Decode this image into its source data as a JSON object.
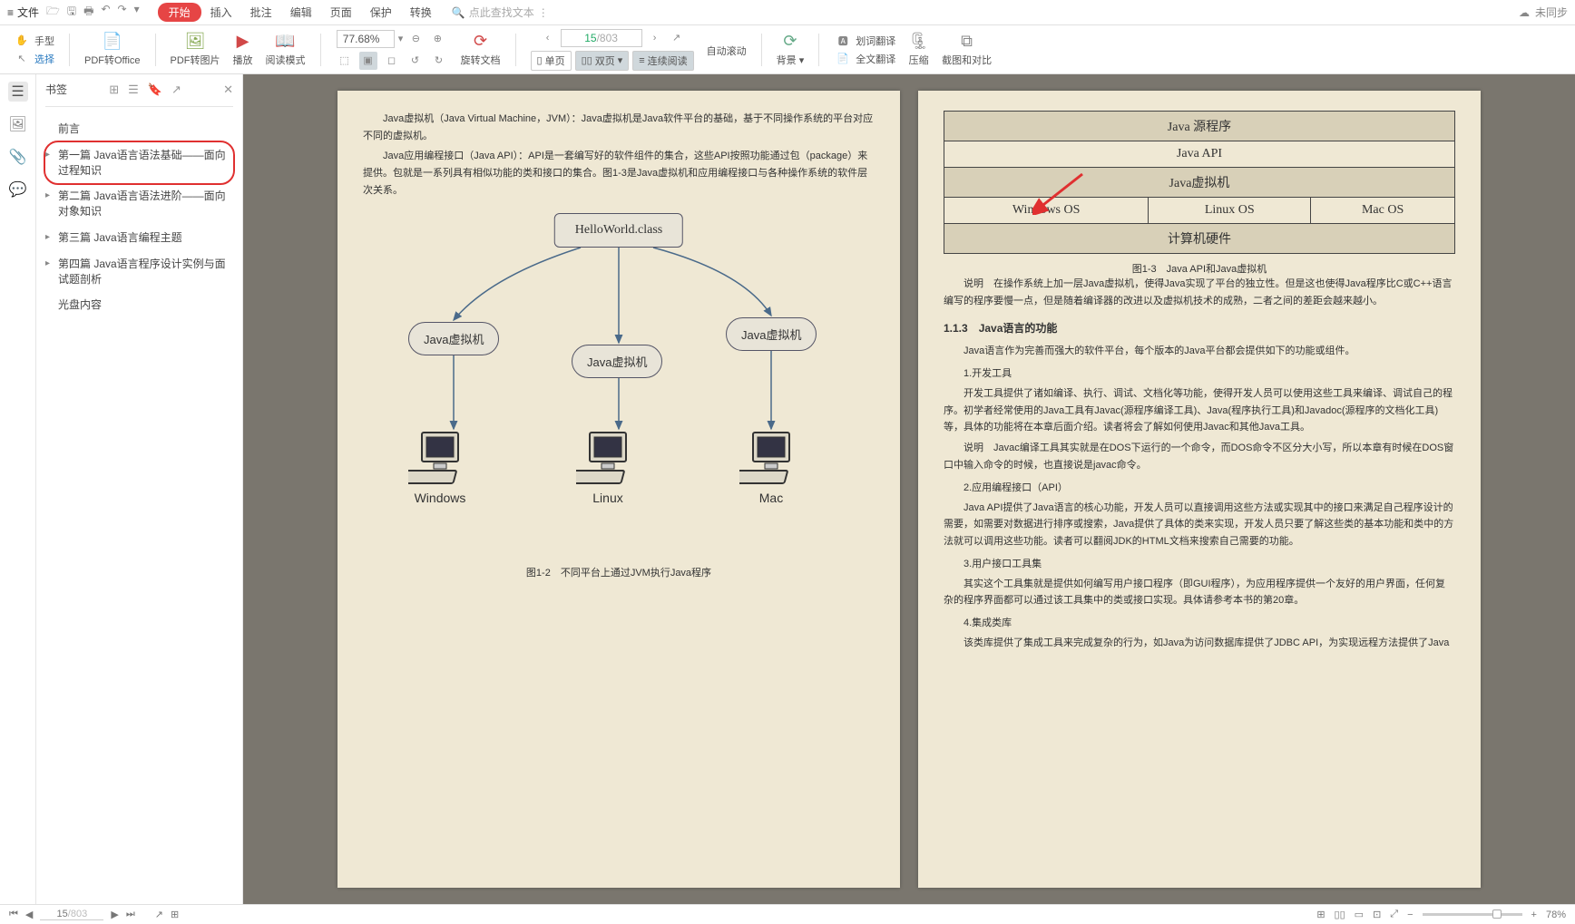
{
  "menu": {
    "file": "文件",
    "tabs": {
      "start": "开始",
      "insert": "插入",
      "review": "批注",
      "edit": "编辑",
      "page": "页面",
      "protect": "保护",
      "convert": "转换"
    },
    "search_hint": "点此查找文本",
    "sync_status": "未同步"
  },
  "toolbar": {
    "hand": "手型",
    "select": "选择",
    "pdf_to_office": "PDF转Office",
    "pdf_to_image": "PDF转图片",
    "play": "播放",
    "read_mode": "阅读模式",
    "zoom_value": "77.68%",
    "rotate": "旋转文档",
    "page_current": "15",
    "page_total": "/803",
    "single": "单页",
    "double": "双页",
    "continuous": "连续阅读",
    "auto_scroll": "自动滚动",
    "background": "背景",
    "word_translate": "划词翻译",
    "full_translate": "全文翻译",
    "compress": "压缩",
    "screenshot": "截图和对比"
  },
  "bookmarks": {
    "title": "书签",
    "items": [
      {
        "label": "前言",
        "expandable": false
      },
      {
        "label": "第一篇 Java语言语法基础——面向过程知识",
        "expandable": true,
        "highlighted": true
      },
      {
        "label": "第二篇 Java语言语法进阶——面向对象知识",
        "expandable": true
      },
      {
        "label": "第三篇 Java语言编程主题",
        "expandable": true
      },
      {
        "label": "第四篇 Java语言程序设计实例与面试题剖析",
        "expandable": true
      },
      {
        "label": "光盘内容",
        "expandable": false
      }
    ]
  },
  "left_page": {
    "para1": "Java虚拟机（Java Virtual Machine，JVM）：Java虚拟机是Java软件平台的基础，基于不同操作系统的平台对应不同的虚拟机。",
    "para2": "Java应用编程接口（Java API）：API是一套编写好的软件组件的集合，这些API按照功能通过包（package）来提供。包就是一系列具有相似功能的类和接口的集合。图1-3是Java虚拟机和应用编程接口与各种操作系统的软件层次关系。",
    "diagram": {
      "class_box": "HelloWorld.class",
      "jvm_label": "Java虚拟机",
      "os": {
        "windows": "Windows",
        "linux": "Linux",
        "mac": "Mac"
      }
    },
    "caption": "图1-2　不同平台上通过JVM执行Java程序"
  },
  "right_page": {
    "table": {
      "r1": "Java 源程序",
      "r2": "Java API",
      "r3": "Java虚拟机",
      "r4a": "Windows OS",
      "r4b": "Linux OS",
      "r4c": "Mac OS",
      "r5": "计算机硬件"
    },
    "caption": "图1-3　Java API和Java虚拟机",
    "note1_label": "说明",
    "note1": "　在操作系统上加一层Java虚拟机，使得Java实现了平台的独立性。但是这也使得Java程序比C或C++语言编写的程序要慢一点，但是随着编译器的改进以及虚拟机技术的成熟，二者之间的差距会越来越小。",
    "sec_113": "1.1.3　Java语言的功能",
    "p_intro": "Java语言作为完善而强大的软件平台，每个版本的Java平台都会提供如下的功能或组件。",
    "i1": "1.开发工具",
    "p1": "开发工具提供了诸如编译、执行、调试、文档化等功能，使得开发人员可以使用这些工具来编译、调试自己的程序。初学者经常使用的Java工具有Javac(源程序编译工具)、Java(程序执行工具)和Javadoc(源程序的文档化工具)等，具体的功能将在本章后面介绍。读者将会了解如何使用Javac和其他Java工具。",
    "note2_label": "说明",
    "note2": "　Javac编译工具其实就是在DOS下运行的一个命令，而DOS命令不区分大小写，所以本章有时候在DOS窗口中输入命令的时候，也直接说是javac命令。",
    "i2": "2.应用编程接口（API）",
    "p2": "Java API提供了Java语言的核心功能，开发人员可以直接调用这些方法或实现其中的接口来满足自己程序设计的需要，如需要对数据进行排序或搜索，Java提供了具体的类来实现，开发人员只要了解这些类的基本功能和类中的方法就可以调用这些功能。读者可以翻阅JDK的HTML文档来搜索自己需要的功能。",
    "i3": "3.用户接口工具集",
    "p3": "其实这个工具集就是提供如何编写用户接口程序（即GUI程序），为应用程序提供一个友好的用户界面，任何复杂的程序界面都可以通过该工具集中的类或接口实现。具体请参考本书的第20章。",
    "i4": "4.集成类库",
    "p4": "该类库提供了集成工具来完成复杂的行为，如Java为访问数据库提供了JDBC API，为实现远程方法提供了Java"
  },
  "status": {
    "page_cur": "15",
    "page_tot": "/803",
    "zoom_pct": "78%"
  },
  "colors": {
    "accent_red": "#e64545",
    "paper_bg": "#efe8d4",
    "doc_bg": "#7a766e",
    "table_cell": "#d8d0b8",
    "highlight_ring": "#e03030"
  }
}
